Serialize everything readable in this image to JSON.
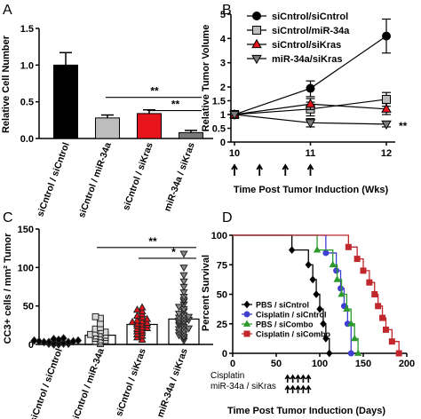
{
  "chart_data": [
    {
      "panel": "A",
      "type": "bar",
      "ylabel": "Relative Cell Number",
      "ylim": [
        0,
        1.5
      ],
      "yticks": [
        "0.0",
        "0.5",
        "1.0",
        "1.5"
      ],
      "yticks_values": [
        0,
        0.5,
        1.0,
        1.5
      ],
      "categories": [
        "siCntrol / siCntrol",
        "siCntrol / miR-34a",
        "siCntrol / siKras",
        "miR-34a / siKras"
      ],
      "values": [
        1.0,
        0.28,
        0.34,
        0.08
      ],
      "errors": [
        0.17,
        0.04,
        0.05,
        0.03
      ],
      "colors": [
        "#000000",
        "#bdbdbd",
        "#e8141b",
        "#7a7a7a"
      ],
      "annotations": [
        {
          "text": "**",
          "from": 1,
          "to": 3,
          "y": 0.56
        },
        {
          "text": "**",
          "from": 2,
          "to": 3,
          "y": 0.38
        }
      ]
    },
    {
      "panel": "B",
      "type": "line",
      "ylabel": "Relative Tumor Volume",
      "xlabel": "Time Post Tumor Induction (Wks)",
      "x": [
        10,
        11,
        12
      ],
      "xlim": [
        10,
        12
      ],
      "ylim": [
        0,
        5
      ],
      "yticks": [
        "0",
        "0.5",
        "1",
        "1.5",
        "2",
        "3",
        "4",
        "5"
      ],
      "yticks_values": [
        0,
        0.5,
        1,
        1.5,
        2,
        3,
        4,
        5
      ],
      "series": [
        {
          "name": "siCntrol/siCntrol",
          "values": [
            1.0,
            1.95,
            4.1
          ],
          "errors": [
            0.05,
            0.3,
            0.7
          ],
          "color": "#000000",
          "marker": "circle"
        },
        {
          "name": "siCntrol/miR-34a",
          "values": [
            1.0,
            1.2,
            1.55
          ],
          "errors": [
            0.05,
            0.25,
            0.25
          ],
          "color": "#bdbdbd",
          "marker": "square"
        },
        {
          "name": "siCntrol/siKras",
          "values": [
            1.0,
            1.38,
            1.2
          ],
          "errors": [
            0.05,
            0.2,
            0.2
          ],
          "color": "#e8141b",
          "marker": "triangle-up"
        },
        {
          "name": "miR-34a/siKras",
          "values": [
            1.0,
            0.7,
            0.65
          ],
          "errors": [
            0.05,
            0.15,
            0.1
          ],
          "color": "#7a7a7a",
          "marker": "triangle-down"
        }
      ],
      "arrows_at_weeks": [
        10,
        10.33,
        10.67,
        11
      ],
      "significance": "**"
    },
    {
      "panel": "C",
      "type": "bar",
      "ylabel": "CC3+ cells / mm² Tumor",
      "ylim": [
        0,
        150
      ],
      "yticks": [
        "0",
        "50",
        "100",
        "150"
      ],
      "yticks_values": [
        0,
        50,
        100,
        150
      ],
      "categories": [
        "siCntrol / siCntrol",
        "siCntrol / miR-34a",
        "siCntrol / siKras",
        "miR-34a / siKras"
      ],
      "values": [
        3,
        12,
        26,
        33
      ],
      "points": [
        [
          0,
          0,
          1,
          1,
          1,
          2,
          2,
          2,
          3,
          3,
          3,
          4,
          4,
          5,
          5,
          6,
          7,
          8
        ],
        [
          1,
          3,
          4,
          5,
          6,
          8,
          9,
          10,
          11,
          12,
          13,
          14,
          15,
          16,
          18,
          20,
          22,
          27,
          34,
          36
        ],
        [
          6,
          9,
          11,
          13,
          15,
          17,
          18,
          20,
          21,
          22,
          24,
          25,
          26,
          27,
          28,
          29,
          30,
          31,
          33,
          35,
          37,
          39,
          43,
          45,
          48
        ],
        [
          5,
          8,
          10,
          12,
          14,
          16,
          18,
          20,
          21,
          23,
          25,
          27,
          28,
          30,
          31,
          32,
          34,
          35,
          36,
          38,
          40,
          43,
          46,
          49,
          52,
          56,
          58,
          62,
          68,
          75,
          82,
          90,
          100,
          118
        ]
      ],
      "marker_fill": [
        "#000000",
        "#d9d9d9",
        "#e8141b",
        "#888888"
      ],
      "marker": [
        "diamond",
        "square",
        "triangle-up",
        "triangle-down"
      ],
      "annotations": [
        {
          "text": "**",
          "from": 1,
          "to": 3,
          "y": 126
        },
        {
          "text": "*",
          "from": 2,
          "to": 3,
          "y": 112
        }
      ]
    },
    {
      "panel": "D",
      "type": "line",
      "ylabel": "Percent Survival",
      "xlabel": "Time Post Tumor Induction (Days)",
      "xlim": [
        0,
        200
      ],
      "ylim": [
        0,
        100
      ],
      "xticks": [
        "0",
        "50",
        "100",
        "150",
        "200"
      ],
      "xticks_values": [
        0,
        50,
        100,
        150,
        200
      ],
      "yticks": [
        "0",
        "25",
        "50",
        "75",
        "100"
      ],
      "yticks_values": [
        0,
        25,
        50,
        75,
        100
      ],
      "series": [
        {
          "name": "PBS / siCntrol",
          "color": "#000000",
          "marker": "diamond",
          "steps": [
            [
              0,
              100
            ],
            [
              68,
              100
            ],
            [
              68,
              87.5
            ],
            [
              87,
              87.5
            ],
            [
              87,
              75
            ],
            [
              92,
              75
            ],
            [
              92,
              62.5
            ],
            [
              96,
              62.5
            ],
            [
              96,
              50
            ],
            [
              100,
              50
            ],
            [
              100,
              37.5
            ],
            [
              104,
              37.5
            ],
            [
              104,
              25
            ],
            [
              107,
              25
            ],
            [
              107,
              12.5
            ],
            [
              111,
              12.5
            ],
            [
              111,
              0
            ],
            [
              114,
              0
            ]
          ]
        },
        {
          "name": "Cisplatin / siCntrol",
          "color": "#3f3fd4",
          "marker": "circle",
          "steps": [
            [
              0,
              100
            ],
            [
              107,
              100
            ],
            [
              107,
              85
            ],
            [
              119,
              85
            ],
            [
              119,
              70
            ],
            [
              124,
              70
            ],
            [
              124,
              55
            ],
            [
              128,
              55
            ],
            [
              128,
              40
            ],
            [
              132,
              40
            ],
            [
              132,
              25
            ],
            [
              136,
              25
            ],
            [
              136,
              0
            ],
            [
              139,
              0
            ]
          ]
        },
        {
          "name": "PBS / siCombo",
          "color": "#2e9a2e",
          "marker": "triangle-up",
          "steps": [
            [
              0,
              100
            ],
            [
              97,
              100
            ],
            [
              97,
              87.5
            ],
            [
              115,
              87.5
            ],
            [
              115,
              75
            ],
            [
              120,
              75
            ],
            [
              120,
              62.5
            ],
            [
              125,
              62.5
            ],
            [
              125,
              50
            ],
            [
              131,
              50
            ],
            [
              131,
              37.5
            ],
            [
              136,
              37.5
            ],
            [
              136,
              25
            ],
            [
              140,
              25
            ],
            [
              140,
              12.5
            ],
            [
              144,
              12.5
            ],
            [
              144,
              0
            ],
            [
              147,
              0
            ]
          ]
        },
        {
          "name": "Cisplatin / siCombo",
          "color": "#c0282d",
          "marker": "square",
          "steps": [
            [
              0,
              100
            ],
            [
              133,
              100
            ],
            [
              133,
              90
            ],
            [
              143,
              90
            ],
            [
              143,
              80
            ],
            [
              150,
              80
            ],
            [
              150,
              70
            ],
            [
              157,
              70
            ],
            [
              157,
              60
            ],
            [
              163,
              60
            ],
            [
              163,
              50
            ],
            [
              167,
              50
            ],
            [
              167,
              40
            ],
            [
              172,
              40
            ],
            [
              172,
              30
            ],
            [
              176,
              30
            ],
            [
              176,
              20
            ],
            [
              183,
              20
            ],
            [
              183,
              10
            ],
            [
              191,
              10
            ],
            [
              191,
              0
            ],
            [
              194,
              0
            ]
          ]
        }
      ],
      "treatment_labels": [
        "Cisplatin",
        "miR-34a / siKras"
      ],
      "treatment_days": [
        63,
        69,
        75,
        81,
        87
      ]
    }
  ]
}
